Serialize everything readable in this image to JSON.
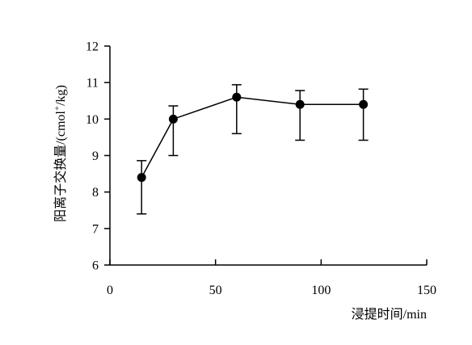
{
  "chart_data": {
    "type": "line",
    "title": "",
    "xlabel": "浸提时间/min",
    "ylabel_main": "阳离子交换量/(cmol",
    "ylabel_sup": "+",
    "ylabel_tail": "/kg)",
    "xlim": [
      0,
      150
    ],
    "ylim": [
      6,
      12
    ],
    "xticks": [
      0,
      50,
      100,
      150
    ],
    "yticks": [
      6,
      7,
      8,
      9,
      10,
      11,
      12
    ],
    "grid": false,
    "legend": "none",
    "series": [
      {
        "x": [
          15,
          30,
          60,
          90,
          120
        ],
        "y": [
          8.4,
          10.0,
          10.6,
          10.4,
          10.4
        ],
        "err_upper": [
          8.86,
          10.36,
          10.94,
          10.78,
          10.82
        ],
        "err_lower": [
          7.4,
          9.0,
          9.6,
          9.42,
          9.42
        ],
        "color": "#000000"
      }
    ]
  }
}
